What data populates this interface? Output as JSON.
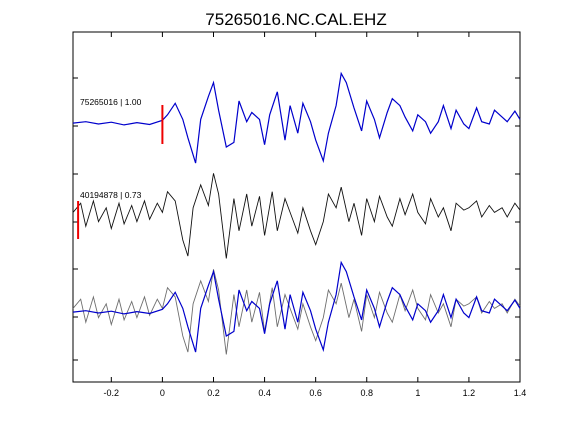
{
  "chart_data": {
    "type": "line",
    "title": "75265016.NC.CAL.EHZ",
    "xlabel": "",
    "ylabel": "",
    "xlim": [
      -0.35,
      1.4
    ],
    "x_ticks": [
      -0.2,
      0,
      0.2,
      0.4,
      0.6,
      0.8,
      1,
      1.2,
      1.4
    ],
    "x_tick_labels": [
      "-0.2",
      "0",
      "0.2",
      "0.4",
      "0.6",
      "0.8",
      "1",
      "1.2",
      "1.4"
    ],
    "grid": false,
    "colors": {
      "blue": "#0000cc",
      "black": "#111111",
      "gray": "#6e6e6e",
      "pick": "#ee0000"
    },
    "traces": [
      {
        "annotation": "75265016 | 1.00",
        "color": "#0000cc",
        "pick_x": 0.0,
        "x": [
          -0.35,
          -0.3,
          -0.25,
          -0.2,
          -0.15,
          -0.1,
          -0.05,
          0,
          0.02,
          0.05,
          0.08,
          0.1,
          0.13,
          0.15,
          0.18,
          0.2,
          0.22,
          0.25,
          0.28,
          0.3,
          0.33,
          0.35,
          0.38,
          0.4,
          0.42,
          0.45,
          0.48,
          0.5,
          0.53,
          0.55,
          0.58,
          0.6,
          0.63,
          0.65,
          0.68,
          0.7,
          0.72,
          0.75,
          0.78,
          0.8,
          0.83,
          0.85,
          0.88,
          0.9,
          0.93,
          0.95,
          0.98,
          1,
          1.03,
          1.05,
          1.08,
          1.1,
          1.13,
          1.15,
          1.18,
          1.2,
          1.23,
          1.25,
          1.28,
          1.3,
          1.33,
          1.35,
          1.38,
          1.4
        ],
        "y": [
          0.02,
          0.05,
          0,
          0.04,
          -0.02,
          0.03,
          -0.01,
          0.08,
          0.2,
          0.45,
          0.1,
          -0.3,
          -0.85,
          0.1,
          0.6,
          0.9,
          0.3,
          -0.5,
          -0.4,
          0.5,
          0.05,
          0.25,
          0.1,
          -0.45,
          0.2,
          0.7,
          -0.35,
          0.4,
          -0.2,
          0.45,
          0.05,
          -0.35,
          -0.8,
          -0.2,
          0.4,
          1.1,
          0.9,
          0.35,
          -0.15,
          0.5,
          0.1,
          -0.3,
          0.25,
          0.55,
          0.4,
          0.15,
          -0.15,
          0.2,
          0.05,
          -0.2,
          0.05,
          0.4,
          -0.1,
          0.3,
          0.0,
          -0.1,
          0.35,
          0.05,
          0.0,
          0.3,
          0.15,
          0.05,
          0.28,
          0.1
        ]
      },
      {
        "annotation": "40194878 | 0.73",
        "color": "#111111",
        "pick_x": -0.33,
        "x": [
          -0.35,
          -0.32,
          -0.3,
          -0.27,
          -0.25,
          -0.22,
          -0.2,
          -0.17,
          -0.15,
          -0.12,
          -0.1,
          -0.07,
          -0.05,
          -0.02,
          0,
          0.02,
          0.05,
          0.08,
          0.1,
          0.12,
          0.15,
          0.18,
          0.2,
          0.22,
          0.25,
          0.28,
          0.3,
          0.33,
          0.35,
          0.38,
          0.4,
          0.43,
          0.45,
          0.48,
          0.5,
          0.53,
          0.55,
          0.58,
          0.6,
          0.63,
          0.65,
          0.68,
          0.7,
          0.73,
          0.75,
          0.78,
          0.8,
          0.83,
          0.85,
          0.88,
          0.9,
          0.93,
          0.95,
          0.98,
          1,
          1.03,
          1.05,
          1.08,
          1.1,
          1.13,
          1.15,
          1.18,
          1.2,
          1.23,
          1.25,
          1.28,
          1.3,
          1.33,
          1.35,
          1.38,
          1.4
        ],
        "y": [
          0.1,
          0.3,
          -0.2,
          0.35,
          -0.1,
          0.2,
          -0.25,
          0.3,
          -0.15,
          0.25,
          -0.1,
          0.35,
          -0.05,
          0.3,
          0.1,
          0.55,
          0.35,
          -0.5,
          -0.85,
          0.2,
          0.7,
          0.25,
          0.95,
          0.5,
          -0.9,
          0.4,
          -0.3,
          0.5,
          -0.2,
          0.45,
          -0.4,
          0.55,
          -0.3,
          0.4,
          0.1,
          -0.35,
          0.2,
          -0.3,
          -0.6,
          -0.1,
          0.5,
          0.2,
          0.65,
          -0.1,
          0.3,
          -0.4,
          0.4,
          -0.1,
          0.45,
          0.0,
          -0.2,
          0.4,
          0.05,
          0.5,
          0.1,
          -0.15,
          0.4,
          0.0,
          0.2,
          -0.3,
          0.3,
          0.15,
          0.2,
          0.35,
          0.0,
          0.25,
          0.1,
          0.2,
          0.0,
          0.3,
          0.15
        ]
      }
    ],
    "overlay": {
      "description_series": [
        "75265016 | 1.00",
        "40194878 | 0.73"
      ],
      "colors": [
        "#6e6e6e",
        "#0000cc"
      ]
    }
  }
}
